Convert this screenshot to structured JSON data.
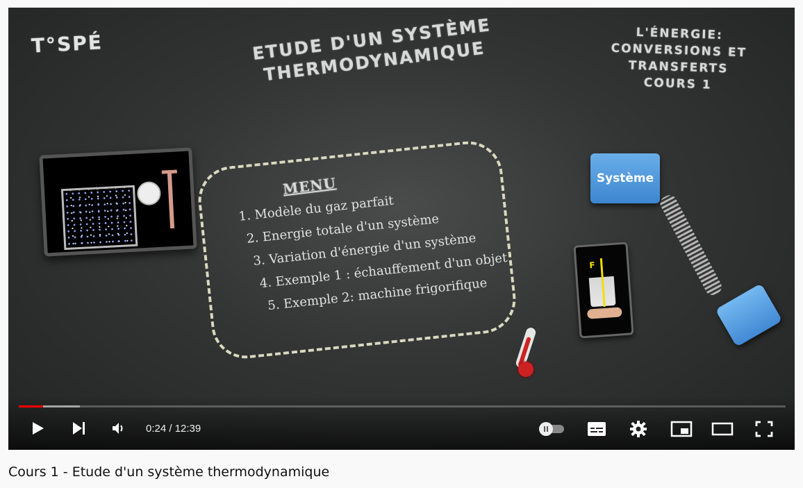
{
  "slide": {
    "brand": "T°SPÉ",
    "title_line1": "ETUDE D'UN SYSTÈME",
    "title_line2": "THERMODYNAMIQUE",
    "chapter_line1": "L'ÉNERGIE:",
    "chapter_line2": "CONVERSIONS ET TRANSFERTS",
    "chapter_line3": "COURS 1",
    "menu_title": "MENU",
    "menu_items": [
      "1. Modèle du gaz parfait",
      "2. Energie totale d'un système",
      "3. Variation d'énergie d'un système",
      "4. Exemple 1 : échauffement d'un objet",
      "5. Exemple 2: machine frigorifique"
    ],
    "system_label": "Système",
    "force_label": "F"
  },
  "player": {
    "time": "0:24 / 12:39",
    "progress": 0.032,
    "buffered": 0.08
  },
  "video_title": "Cours 1 - Etude d'un système thermodynamique"
}
